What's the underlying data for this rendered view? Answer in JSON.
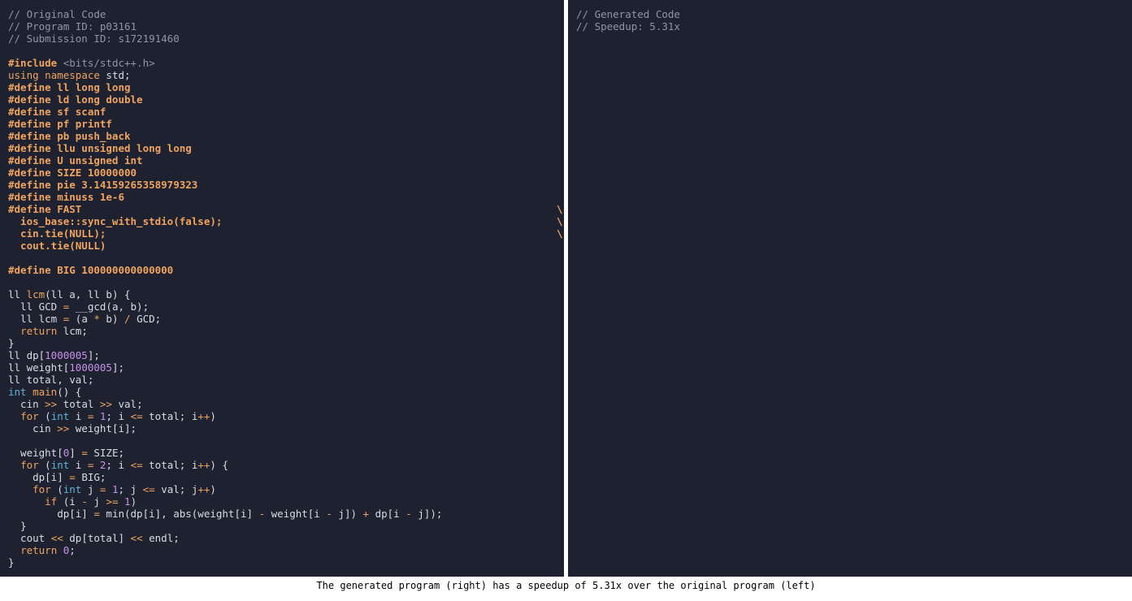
{
  "left_pane": {
    "header": [
      "// Original Code",
      "// Program ID: p03161",
      "// Submission ID: s172191460"
    ],
    "lines": [
      "",
      "#include <bits/stdc++.h>",
      "using namespace std;",
      "#define ll long long",
      "#define ld long double",
      "#define sf scanf",
      "#define pf printf",
      "#define pb push_back",
      "#define llu unsigned long long",
      "#define U unsigned int",
      "#define SIZE 10000000",
      "#define pie 3.14159265358979323",
      "#define minuss 1e-6",
      "#define FAST",
      "  ios_base::sync_with_stdio(false);",
      "  cin.tie(NULL);",
      "  cout.tie(NULL)",
      "",
      "#define BIG 100000000000000",
      "",
      "ll lcm(ll a, ll b) {",
      "  ll GCD = __gcd(a, b);",
      "  ll lcm = (a * b) / GCD;",
      "  return lcm;",
      "}",
      "ll dp[1000005];",
      "ll weight[1000005];",
      "ll total, val;",
      "int main() {",
      "  cin >> total >> val;",
      "  for (int i = 1; i <= total; i++)",
      "    cin >> weight[i];",
      "",
      "  weight[0] = SIZE;",
      "  for (int i = 2; i <= total; i++) {",
      "    dp[i] = BIG;",
      "    for (int j = 1; j <= val; j++)",
      "      if (i - j >= 1)",
      "        dp[i] = min(dp[i], abs(weight[i] - weight[i - j]) + dp[i - j]);",
      "  }",
      "  cout << dp[total] << endl;",
      "  return 0;",
      "}"
    ],
    "backslash": "\\"
  },
  "right_pane": {
    "header": [
      "// Generated Code",
      "// Speedup: 5.31x"
    ]
  },
  "caption": "The generated program (right) has a speedup of 5.31x over the original program (left)",
  "colors": {
    "background": "#1e2230",
    "comment": "#8d96a8",
    "keyword": "#f0a35e",
    "type": "#5fb3d8",
    "number": "#c792ea",
    "text": "#d8dce6"
  }
}
